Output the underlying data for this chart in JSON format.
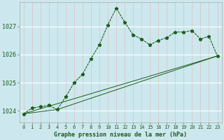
{
  "title": "Graphe pression niveau de la mer (hPa)",
  "bg_color": "#cce8ee",
  "grid_color_h": "#ffffff",
  "grid_color_v": "#ddbdbd",
  "line_color": "#1a5c1a",
  "marker_color": "#1a5c1a",
  "xlim": [
    -0.5,
    23.5
  ],
  "ylim": [
    1023.6,
    1027.85
  ],
  "yticks": [
    1024,
    1025,
    1026,
    1027
  ],
  "xticks": [
    0,
    1,
    2,
    3,
    4,
    5,
    6,
    7,
    8,
    9,
    10,
    11,
    12,
    13,
    14,
    15,
    16,
    17,
    18,
    19,
    20,
    21,
    22,
    23
  ],
  "series1_x": [
    0,
    1,
    2,
    3,
    4,
    5,
    6,
    7,
    8,
    9,
    10,
    11,
    12,
    13,
    14,
    15,
    16,
    17,
    18,
    19,
    20,
    21,
    22,
    23
  ],
  "series1_y": [
    1023.9,
    1024.1,
    1024.15,
    1024.2,
    1024.05,
    1024.5,
    1025.0,
    1025.3,
    1025.85,
    1026.35,
    1027.05,
    1027.65,
    1027.15,
    1026.7,
    1026.55,
    1026.35,
    1026.5,
    1026.6,
    1026.8,
    1026.8,
    1026.85,
    1026.55,
    1026.65,
    1025.95
  ],
  "series2_x": [
    0,
    23
  ],
  "series2_y": [
    1023.9,
    1025.95
  ],
  "series3_x": [
    0,
    4,
    23
  ],
  "series3_y": [
    1023.9,
    1024.05,
    1025.95
  ]
}
